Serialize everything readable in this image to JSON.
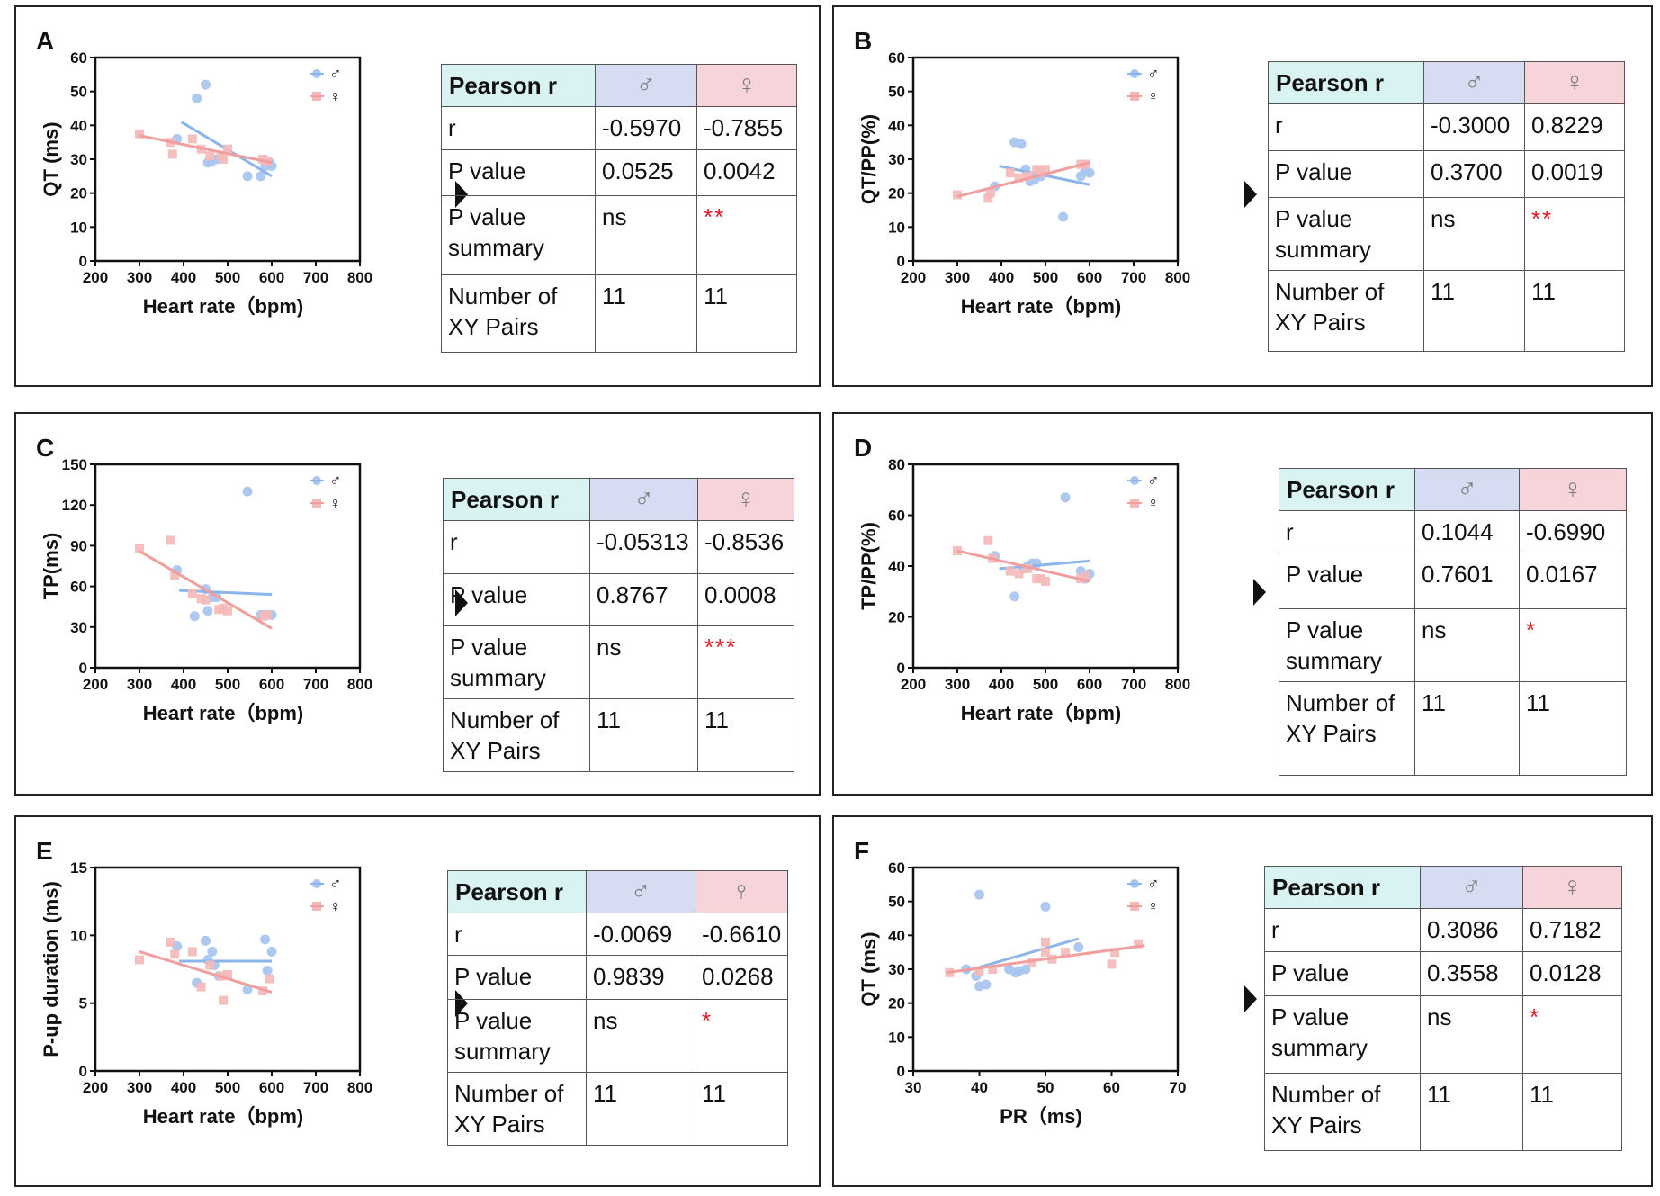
{
  "colors": {
    "male": "#a9c6ef",
    "female": "#f4b8b8",
    "male_line": "#8cb6ea",
    "female_line": "#f09e9e",
    "star": "#e01b24"
  },
  "table_headers": {
    "pearson": "Pearson r",
    "male": "♂",
    "female": "♀"
  },
  "row_labels": {
    "r": "r",
    "p": "P value",
    "summary": "P value summary",
    "pairs": "Number of XY Pairs"
  },
  "legend": {
    "male": "♂",
    "female": "♀"
  },
  "chart_data": [
    {
      "panel": "A",
      "type": "scatter",
      "xlabel": "Heart rate（bpm)",
      "ylabel": "QT (ms)",
      "xlim": [
        200,
        800
      ],
      "ylim": [
        0,
        60
      ],
      "xticks": [
        200,
        300,
        400,
        500,
        600,
        700,
        800
      ],
      "yticks": [
        0,
        10,
        20,
        30,
        40,
        50,
        60
      ],
      "series": [
        {
          "name": "♂",
          "points": [
            [
              385,
              36
            ],
            [
              430,
              48
            ],
            [
              450,
              52
            ],
            [
              455,
              29
            ],
            [
              465,
              29.5
            ],
            [
              475,
              30
            ],
            [
              545,
              25
            ],
            [
              575,
              25
            ],
            [
              585,
              28
            ],
            [
              595,
              29
            ],
            [
              600,
              28
            ]
          ],
          "fit": [
            [
              395,
              41
            ],
            [
              600,
              25
            ]
          ]
        },
        {
          "name": "♀",
          "points": [
            [
              300,
              37.5
            ],
            [
              370,
              35
            ],
            [
              375,
              31.5
            ],
            [
              420,
              36
            ],
            [
              440,
              33
            ],
            [
              460,
              31
            ],
            [
              485,
              31
            ],
            [
              490,
              30
            ],
            [
              500,
              33
            ],
            [
              580,
              30
            ],
            [
              590,
              29.5
            ]
          ],
          "fit": [
            [
              300,
              37
            ],
            [
              600,
              29
            ]
          ]
        }
      ],
      "table": {
        "r": [
          "-0.5970",
          "-0.7855"
        ],
        "p": [
          "0.0525",
          "0.0042"
        ],
        "summary": [
          "ns",
          "**"
        ],
        "pairs": [
          "11",
          "11"
        ]
      }
    },
    {
      "panel": "B",
      "type": "scatter",
      "xlabel": "Heart rate（bpm)",
      "ylabel": "QT/PP(%)",
      "xlim": [
        200,
        800
      ],
      "ylim": [
        0,
        60
      ],
      "xticks": [
        200,
        300,
        400,
        500,
        600,
        700,
        800
      ],
      "yticks": [
        0,
        10,
        20,
        30,
        40,
        50,
        60
      ],
      "series": [
        {
          "name": "♂",
          "points": [
            [
              385,
              22
            ],
            [
              430,
              35
            ],
            [
              445,
              34.5
            ],
            [
              455,
              27
            ],
            [
              465,
              23.5
            ],
            [
              475,
              24
            ],
            [
              490,
              25
            ],
            [
              540,
              13
            ],
            [
              580,
              25
            ],
            [
              590,
              26.5
            ],
            [
              600,
              26
            ]
          ],
          "fit": [
            [
              395,
              28
            ],
            [
              600,
              22.5
            ]
          ]
        },
        {
          "name": "♀",
          "points": [
            [
              300,
              19.5
            ],
            [
              370,
              18.5
            ],
            [
              375,
              20
            ],
            [
              420,
              26
            ],
            [
              440,
              24.5
            ],
            [
              460,
              25
            ],
            [
              480,
              27
            ],
            [
              490,
              26
            ],
            [
              500,
              27
            ],
            [
              580,
              28.5
            ],
            [
              590,
              28.5
            ]
          ],
          "fit": [
            [
              300,
              19
            ],
            [
              600,
              29
            ]
          ]
        }
      ],
      "table": {
        "r": [
          "-0.3000",
          "0.8229"
        ],
        "p": [
          "0.3700",
          "0.0019"
        ],
        "summary": [
          "ns",
          "**"
        ],
        "pairs": [
          "11",
          "11"
        ]
      }
    },
    {
      "panel": "C",
      "type": "scatter",
      "xlabel": "Heart rate（bpm)",
      "ylabel": "TP(ms)",
      "xlim": [
        200,
        800
      ],
      "ylim": [
        0,
        150
      ],
      "xticks": [
        200,
        300,
        400,
        500,
        600,
        700,
        800
      ],
      "yticks": [
        0,
        30,
        60,
        90,
        120,
        150
      ],
      "series": [
        {
          "name": "♂",
          "points": [
            [
              385,
              72
            ],
            [
              425,
              38
            ],
            [
              450,
              58
            ],
            [
              455,
              42
            ],
            [
              465,
              52
            ],
            [
              475,
              52
            ],
            [
              545,
              130
            ],
            [
              575,
              39
            ],
            [
              585,
              39
            ],
            [
              595,
              39
            ],
            [
              600,
              39
            ]
          ],
          "fit": [
            [
              390,
              57
            ],
            [
              600,
              54
            ]
          ]
        },
        {
          "name": "♀",
          "points": [
            [
              300,
              88
            ],
            [
              370,
              94
            ],
            [
              380,
              68
            ],
            [
              420,
              55
            ],
            [
              440,
              51
            ],
            [
              450,
              50
            ],
            [
              480,
              43
            ],
            [
              490,
              44
            ],
            [
              500,
              42
            ],
            [
              580,
              38
            ],
            [
              590,
              39
            ]
          ],
          "fit": [
            [
              300,
              86
            ],
            [
              600,
              29
            ]
          ]
        }
      ],
      "table": {
        "r": [
          "-0.05313",
          "-0.8536"
        ],
        "p": [
          "0.8767",
          "0.0008"
        ],
        "summary": [
          "ns",
          "***"
        ],
        "pairs": [
          "11",
          "11"
        ]
      }
    },
    {
      "panel": "D",
      "type": "scatter",
      "xlabel": "Heart rate（bpm)",
      "ylabel": "TP/PP(%)",
      "xlim": [
        200,
        800
      ],
      "ylim": [
        0,
        80
      ],
      "xticks": [
        200,
        300,
        400,
        500,
        600,
        700,
        800
      ],
      "yticks": [
        0,
        20,
        40,
        60,
        80
      ],
      "series": [
        {
          "name": "♂",
          "points": [
            [
              385,
              44
            ],
            [
              430,
              28
            ],
            [
              450,
              39
            ],
            [
              460,
              40
            ],
            [
              470,
              41
            ],
            [
              480,
              41
            ],
            [
              545,
              67
            ],
            [
              580,
              38
            ],
            [
              590,
              35
            ],
            [
              595,
              36
            ],
            [
              600,
              37
            ]
          ],
          "fit": [
            [
              395,
              39
            ],
            [
              600,
              42
            ]
          ]
        },
        {
          "name": "♀",
          "points": [
            [
              300,
              46
            ],
            [
              370,
              50
            ],
            [
              380,
              43
            ],
            [
              420,
              38
            ],
            [
              440,
              37
            ],
            [
              460,
              39
            ],
            [
              480,
              35
            ],
            [
              490,
              35
            ],
            [
              500,
              34
            ],
            [
              580,
              35
            ],
            [
              590,
              36
            ]
          ],
          "fit": [
            [
              300,
              46
            ],
            [
              600,
              34
            ]
          ]
        }
      ],
      "table": {
        "r": [
          "0.1044",
          "-0.6990"
        ],
        "p": [
          "0.7601",
          "0.0167"
        ],
        "summary": [
          "ns",
          "*"
        ],
        "pairs": [
          "11",
          "11"
        ]
      }
    },
    {
      "panel": "E",
      "type": "scatter",
      "xlabel": "Heart rate（bpm)",
      "ylabel": "P-up duration (ms)",
      "xlim": [
        200,
        800
      ],
      "ylim": [
        0,
        15
      ],
      "xticks": [
        200,
        300,
        400,
        500,
        600,
        700,
        800
      ],
      "yticks": [
        0,
        5,
        10,
        15
      ],
      "series": [
        {
          "name": "♂",
          "points": [
            [
              385,
              9.2
            ],
            [
              430,
              6.5
            ],
            [
              450,
              9.6
            ],
            [
              455,
              8.2
            ],
            [
              465,
              8.8
            ],
            [
              470,
              7.8
            ],
            [
              480,
              7.0
            ],
            [
              545,
              6.0
            ],
            [
              585,
              9.7
            ],
            [
              590,
              7.4
            ],
            [
              600,
              8.8
            ]
          ],
          "fit": [
            [
              390,
              8.1
            ],
            [
              600,
              8.1
            ]
          ]
        },
        {
          "name": "♀",
          "points": [
            [
              300,
              8.2
            ],
            [
              370,
              9.5
            ],
            [
              380,
              8.6
            ],
            [
              420,
              8.8
            ],
            [
              440,
              6.2
            ],
            [
              460,
              7.8
            ],
            [
              485,
              7.0
            ],
            [
              490,
              5.2
            ],
            [
              500,
              7.1
            ],
            [
              580,
              5.9
            ],
            [
              595,
              6.8
            ]
          ],
          "fit": [
            [
              300,
              8.8
            ],
            [
              600,
              5.8
            ]
          ]
        }
      ],
      "table": {
        "r": [
          "-0.0069",
          "-0.6610"
        ],
        "p": [
          "0.9839",
          "0.0268"
        ],
        "summary": [
          "ns",
          "*"
        ],
        "pairs": [
          "11",
          "11"
        ]
      }
    },
    {
      "panel": "F",
      "type": "scatter",
      "xlabel": "PR（ms)",
      "ylabel": "QT (ms)",
      "xlim": [
        30,
        70
      ],
      "ylim": [
        0,
        60
      ],
      "xticks": [
        30,
        40,
        50,
        60,
        70
      ],
      "yticks": [
        0,
        10,
        20,
        30,
        40,
        50,
        60
      ],
      "series": [
        {
          "name": "♂",
          "points": [
            [
              38,
              30
            ],
            [
              39.5,
              28
            ],
            [
              40,
              25
            ],
            [
              40,
              52
            ],
            [
              41,
              25.5
            ],
            [
              44.5,
              30
            ],
            [
              45.5,
              29
            ],
            [
              46,
              29.5
            ],
            [
              47,
              30
            ],
            [
              50,
              48.5
            ],
            [
              55,
              36.5
            ]
          ],
          "fit": [
            [
              38,
              29.5
            ],
            [
              55,
              39
            ]
          ]
        },
        {
          "name": "♀",
          "points": [
            [
              35.5,
              29
            ],
            [
              40,
              29.5
            ],
            [
              42,
              30
            ],
            [
              48,
              32
            ],
            [
              50,
              38
            ],
            [
              50,
              35
            ],
            [
              51,
              33
            ],
            [
              53,
              35
            ],
            [
              60,
              31.5
            ],
            [
              60.5,
              35
            ],
            [
              64,
              37.5
            ]
          ],
          "fit": [
            [
              35,
              29
            ],
            [
              65,
              37
            ]
          ]
        }
      ],
      "table": {
        "r": [
          "0.3086",
          "0.7182"
        ],
        "p": [
          "0.3558",
          "0.0128"
        ],
        "summary": [
          "ns",
          "*"
        ],
        "pairs": [
          "11",
          "11"
        ]
      }
    }
  ]
}
